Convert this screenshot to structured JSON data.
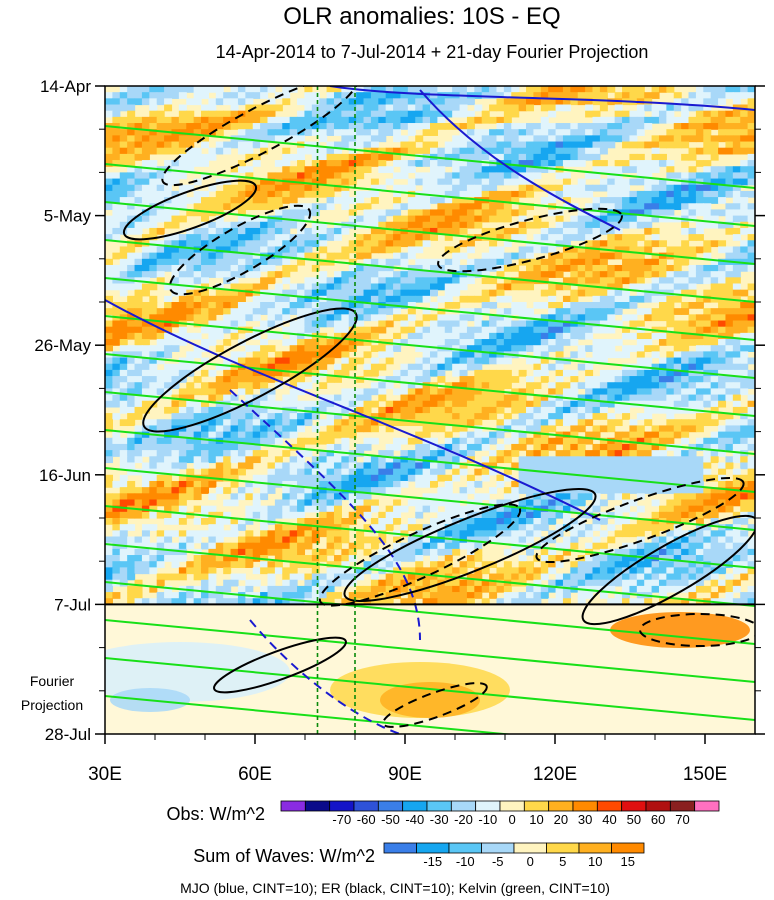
{
  "chart_data": {
    "type": "heatmap",
    "title": "OLR anomalies: 10S - EQ",
    "subtitle": "14-Apr-2014 to 7-Jul-2014 + 21-day Fourier Projection",
    "x_axis": {
      "range": [
        30,
        160
      ],
      "ticks": [
        30,
        60,
        90,
        120,
        150
      ],
      "tick_labels": [
        "30E",
        "60E",
        "90E",
        "120E",
        "150E"
      ]
    },
    "y_axis": {
      "range_days": [
        0,
        105
      ],
      "direction": "time increasing downward",
      "ticks_days": [
        0,
        21,
        42,
        63,
        84,
        105
      ],
      "tick_labels": [
        "14-Apr",
        "5-May",
        "26-May",
        "16-Jun",
        "7-Jul",
        "28-Jul"
      ]
    },
    "forecast_start_day": 84,
    "projection_label": [
      "Fourier",
      "Projection"
    ],
    "reference_lines_lon": [
      72.5,
      80
    ],
    "colorbars": [
      {
        "title": "Obs: W/m^2",
        "labels": [
          "-70",
          "-60",
          "-50",
          "-40",
          "-30",
          "-20",
          "-10",
          "0",
          "10",
          "20",
          "30",
          "40",
          "50",
          "60",
          "70"
        ],
        "colors": [
          "#8a2be2",
          "#0a0a8a",
          "#1414c8",
          "#2e52d8",
          "#3a7ee8",
          "#16a6f0",
          "#5ac6f5",
          "#a8d8f8",
          "#e0f4fc",
          "#fff4c0",
          "#ffd84a",
          "#ffb020",
          "#ff8a00",
          "#ff4a00",
          "#e01010",
          "#b01010",
          "#8a2020",
          "#ff70c0"
        ]
      },
      {
        "title": "Sum of Waves: W/m^2",
        "labels": [
          "-15",
          "-10",
          "-5",
          "0",
          "5",
          "10",
          "15"
        ],
        "colors": [
          "#3a7ee8",
          "#16a6f0",
          "#5ac6f5",
          "#a8d8f8",
          "#fff4c0",
          "#ffd84a",
          "#ffb020",
          "#ff8a00"
        ]
      }
    ],
    "contours": [
      {
        "name": "MJO",
        "color": "#1a1ad0"
      },
      {
        "name": "ER",
        "color": "#000000"
      },
      {
        "name": "Kelvin",
        "color": "#18e018"
      }
    ],
    "footer": "MJO (blue, CINT=10); ER (black, CINT=10); Kelvin (green, CINT=10)"
  }
}
